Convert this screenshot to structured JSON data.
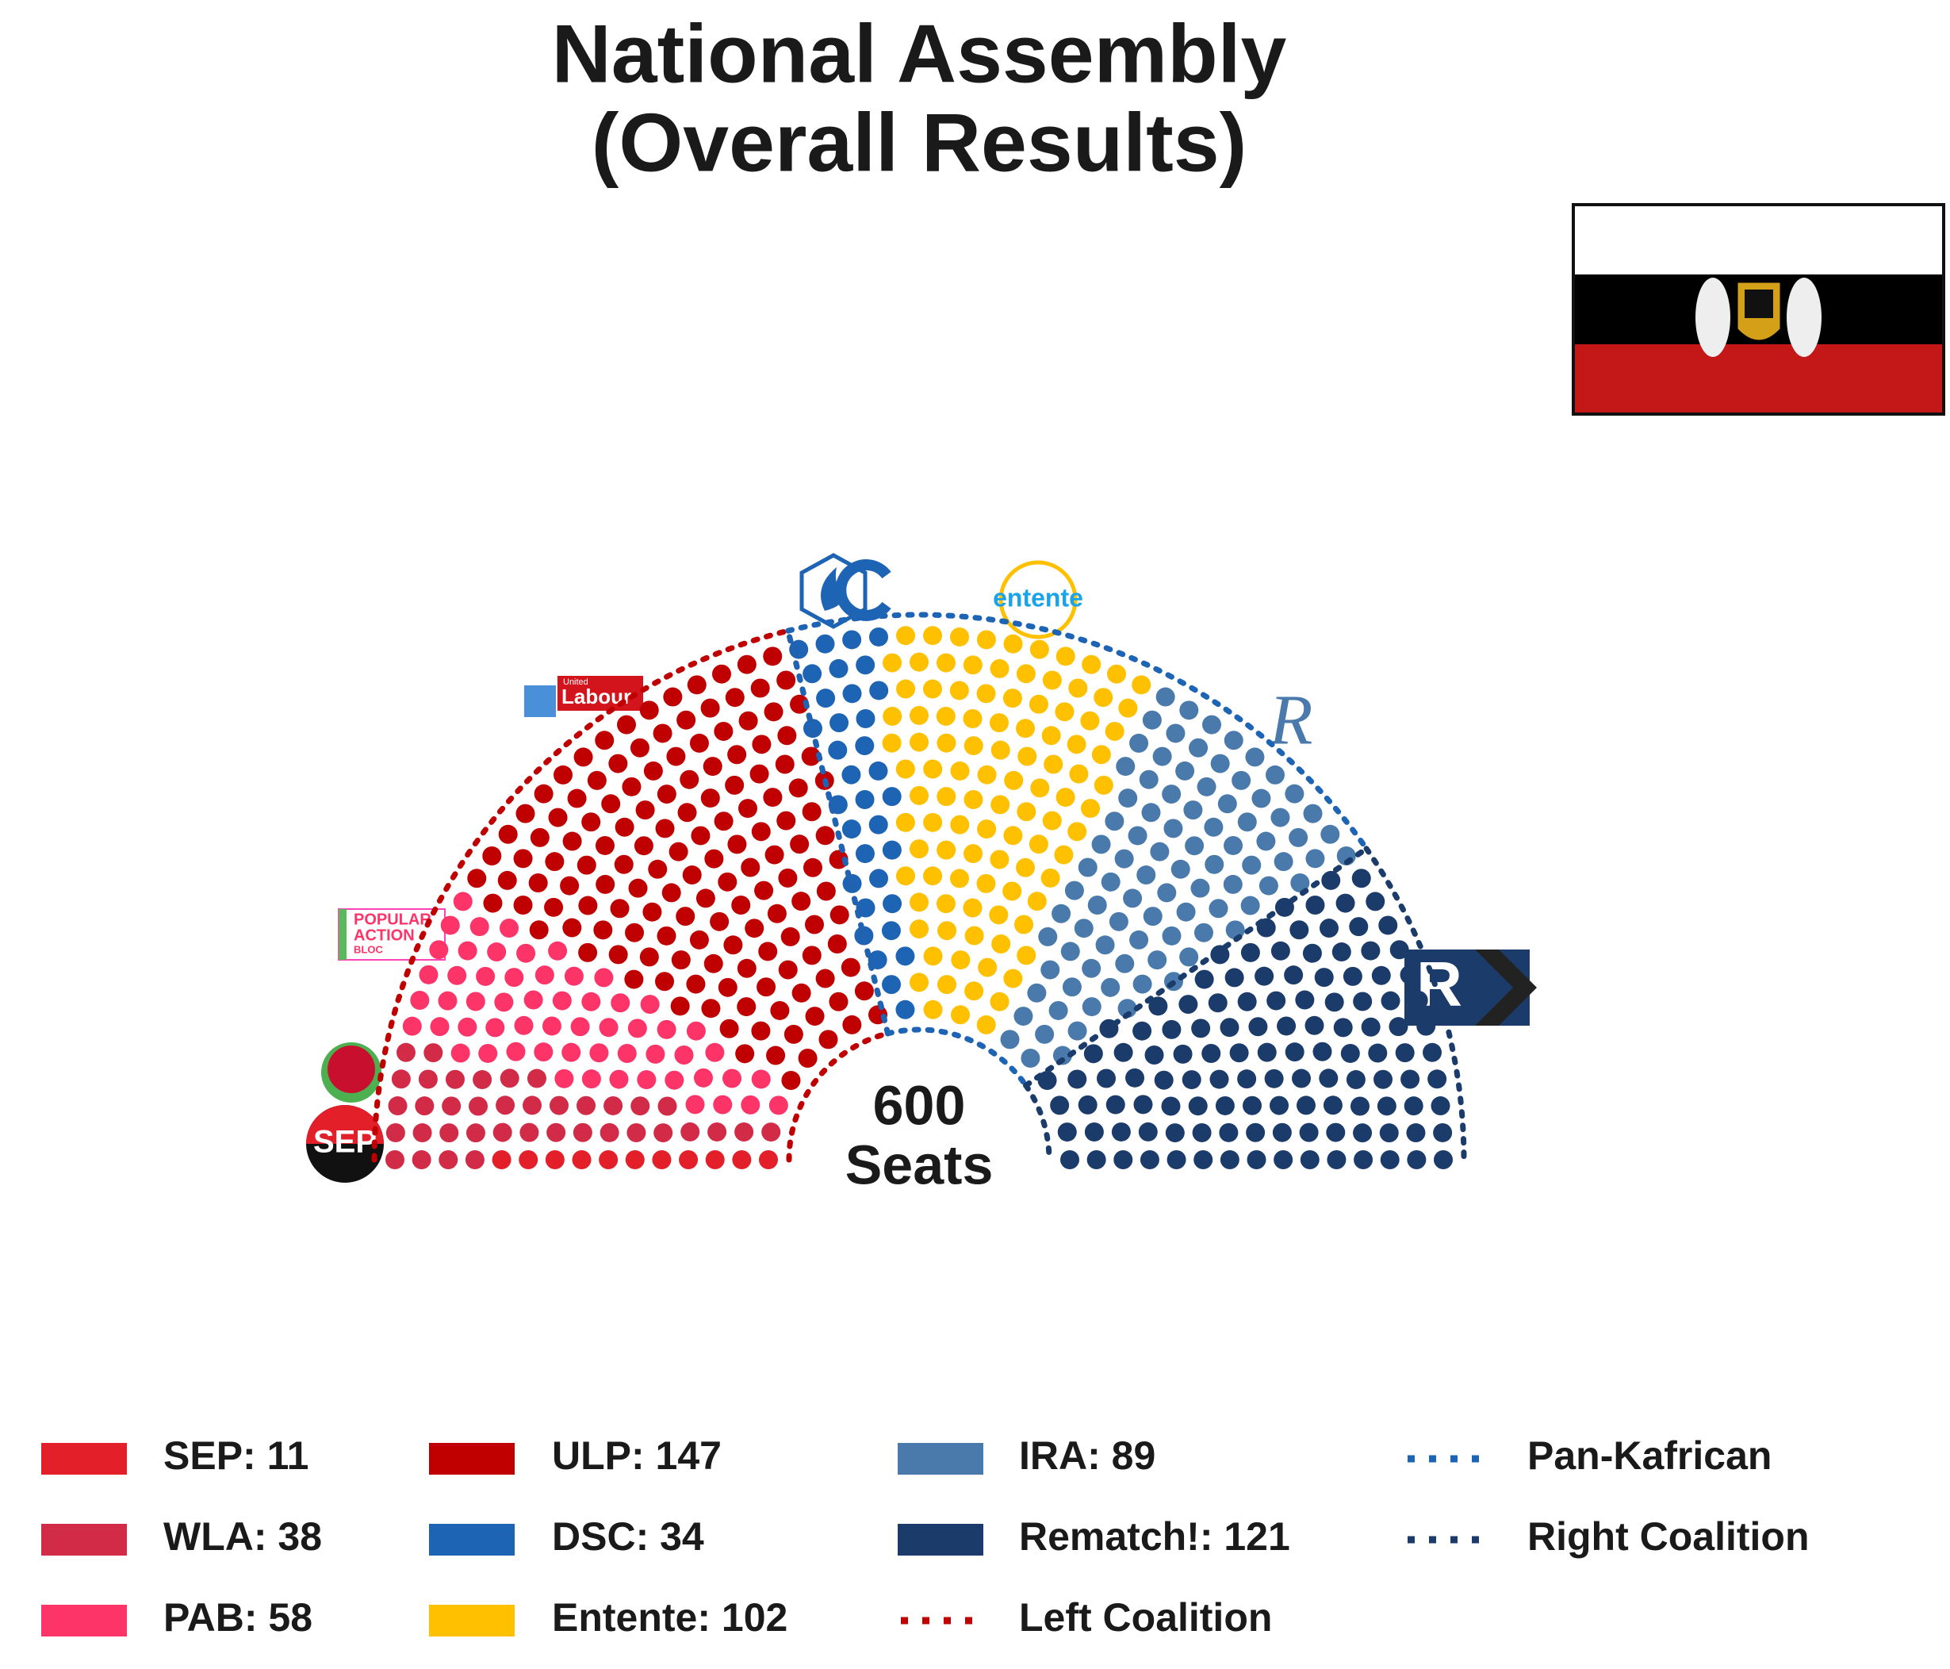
{
  "chart_data": {
    "type": "parliament",
    "title": "National Assembly",
    "subtitle": "(Overall Results)",
    "total": 600,
    "total_label": "Seats",
    "categories": [
      "SEP: 11",
      "WLA: 38",
      "PAB: 58",
      "ULP: 147",
      "DSC: 34",
      "Entente: 102",
      "IRA: 89",
      "Rematch!: 121"
    ],
    "values": [
      11,
      38,
      58,
      147,
      34,
      102,
      89,
      121
    ],
    "colors": [
      "#e3202a",
      "#d12b47",
      "#fd3468",
      "#c00000",
      "#1e64b4",
      "#ffc000",
      "#4a7aab",
      "#1b3c6a"
    ],
    "coalitions": [
      {
        "name": "Left Coalition",
        "color": "#c00000",
        "members": [
          0,
          1,
          2,
          3
        ]
      },
      {
        "name": "Pan-Kafrican",
        "color": "#1e64b4",
        "members": [
          4,
          5,
          6
        ]
      },
      {
        "name": "Right Coalition",
        "color": "#1b3c6a",
        "members": [
          7
        ]
      }
    ]
  },
  "logos": {
    "sep": "SEP",
    "labour_small": "United",
    "labour": "Labour",
    "pab": [
      "POPULAR",
      "ACTION",
      "BLOC"
    ],
    "entente": "entente",
    "ira": "R",
    "rematch": "R"
  }
}
